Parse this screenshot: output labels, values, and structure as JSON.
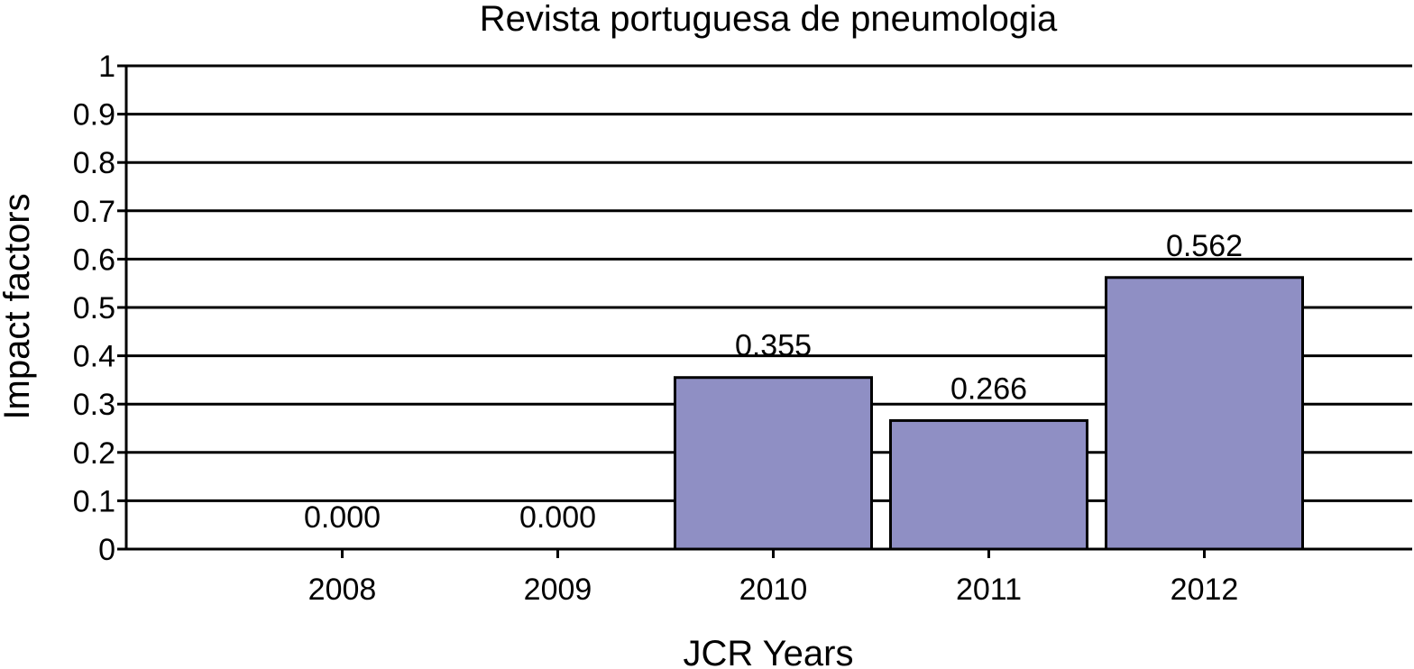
{
  "chart_data": {
    "type": "bar",
    "title": "Revista portuguesa de pneumologia",
    "xlabel": "JCR Years",
    "ylabel": "Impact factors",
    "categories": [
      "2008",
      "2009",
      "2010",
      "2011",
      "2012"
    ],
    "values": [
      0.0,
      0.0,
      0.355,
      0.266,
      0.562
    ],
    "value_labels": [
      "0.000",
      "0.000",
      "0.355",
      "0.266",
      "0.562"
    ],
    "ylim": [
      0,
      1
    ],
    "yticks": [
      "0",
      "0.1",
      "0.2",
      "0.3",
      "0.4",
      "0.5",
      "0.6",
      "0.7",
      "0.8",
      "0.9",
      "1"
    ],
    "grid": true,
    "legend": "none",
    "colors": {
      "bar_fill": "#8f8fc4",
      "bar_stroke": "#000000",
      "grid": "#000000"
    }
  }
}
